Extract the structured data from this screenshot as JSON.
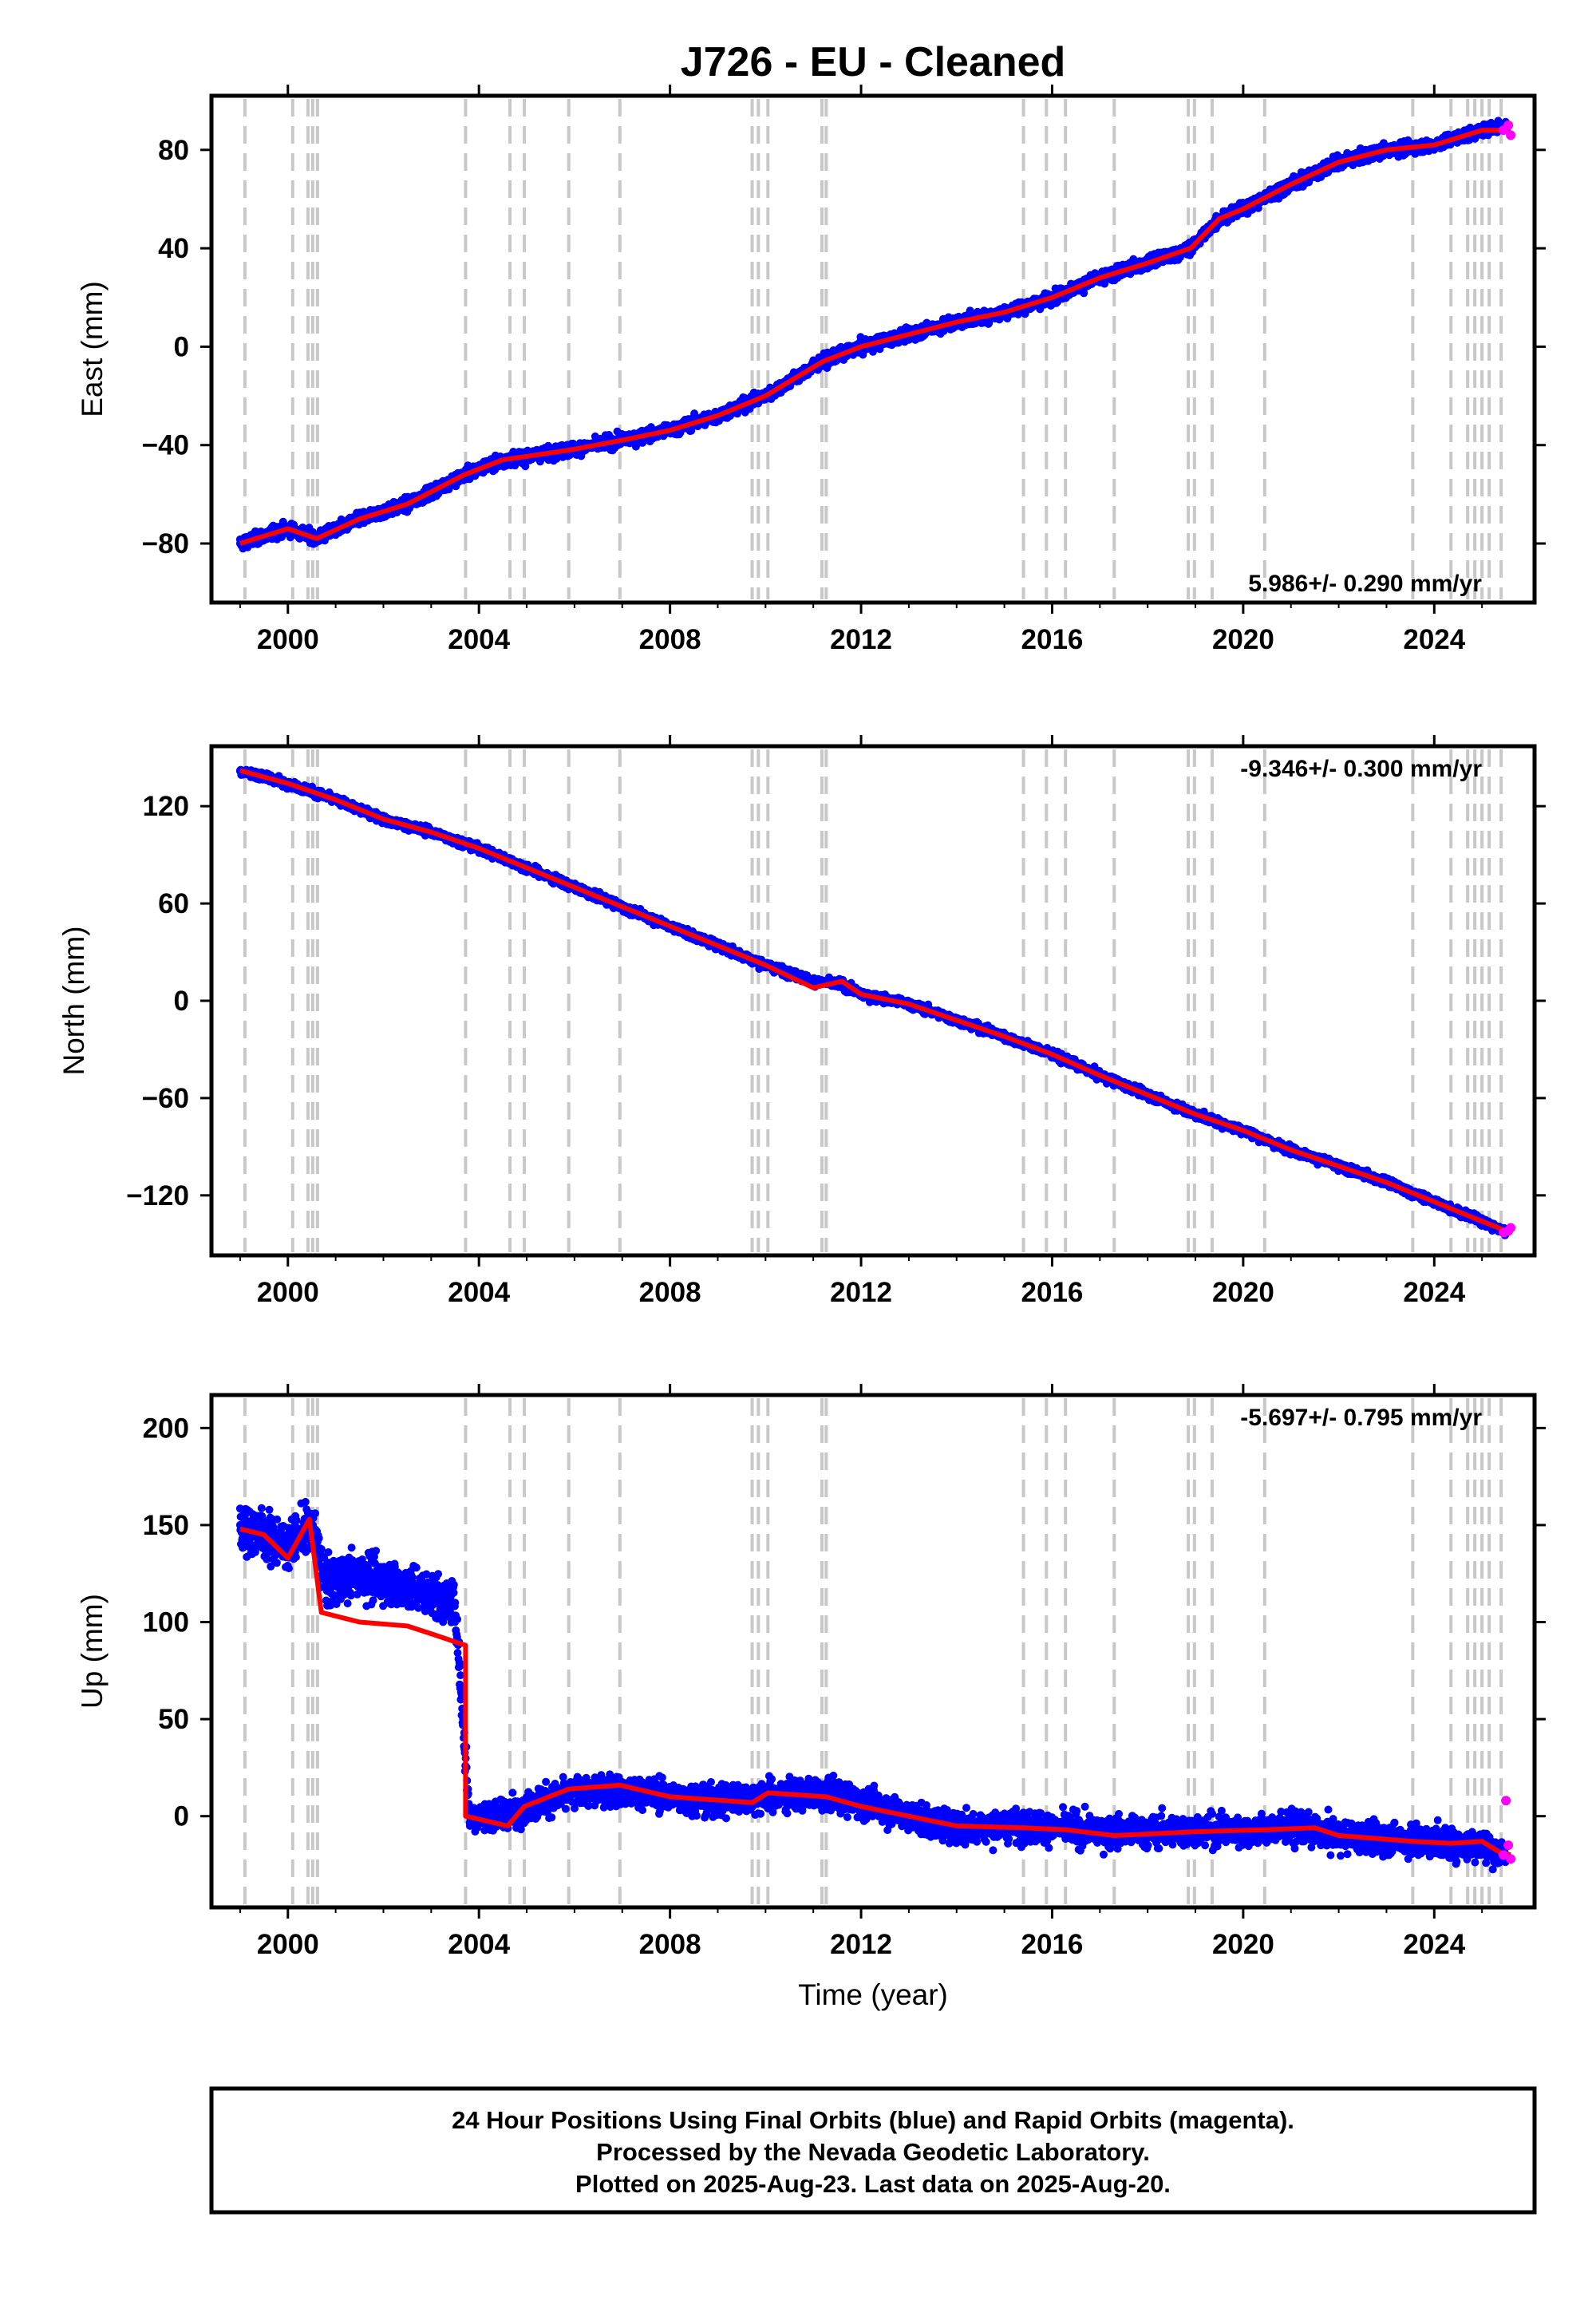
{
  "figure_title": "J726  - EU - Cleaned",
  "footer": {
    "line1": "24 Hour Positions Using Final Orbits (blue) and Rapid Orbits (magenta).",
    "line2": "Processed by the Nevada Geodetic Laboratory.",
    "line3": "Plotted on 2025-Aug-23. Last data on 2025-Aug-20."
  },
  "colors": {
    "final_orbits": "#0000ff",
    "rapid_orbits": "#ff00ff",
    "model_fit": "#ff0000",
    "event_lines": "#c8c8c8"
  },
  "event_lines_years": [
    1999.1,
    2000.1,
    2000.42,
    2000.52,
    2000.62,
    2003.72,
    2004.65,
    2004.95,
    2005.88,
    2006.95,
    2009.72,
    2009.85,
    2010.05,
    2011.18,
    2011.27,
    2015.4,
    2015.88,
    2016.28,
    2017.3,
    2018.85,
    2018.98,
    2019.35,
    2020.45,
    2023.55,
    2024.35,
    2024.7,
    2024.85,
    2025.0,
    2025.15,
    2025.4
  ],
  "chart_data": [
    {
      "type": "scatter",
      "name": "east",
      "ylabel": "East (mm)",
      "xlabel": "",
      "xlim": [
        1998.4,
        2026.1
      ],
      "ylim": [
        -104,
        102
      ],
      "x_ticks": [
        "2000",
        "2004",
        "2008",
        "2012",
        "2016",
        "2020",
        "2024"
      ],
      "y_ticks": [
        "80",
        "40",
        "0",
        "−40",
        "−80"
      ],
      "y_tick_values": [
        80,
        40,
        0,
        -40,
        -80
      ],
      "rate_label": "5.986+/- 0.290 mm/yr",
      "rate_position": "bottom-right",
      "series": [
        {
          "name": "Final Orbits",
          "x": [
            1999.0,
            2000.0,
            2000.6,
            2001.5,
            2002.5,
            2003.7,
            2004.5,
            2005.9,
            2007.0,
            2008.0,
            2009.0,
            2010.0,
            2011.2,
            2012.0,
            2013.0,
            2014.0,
            2015.0,
            2016.0,
            2017.0,
            2018.0,
            2018.9,
            2019.5,
            2020.0,
            2021.0,
            2022.0,
            2023.0,
            2024.0,
            2025.0,
            2025.5
          ],
          "y": [
            -80,
            -74,
            -78,
            -70,
            -64,
            -52,
            -46,
            -42,
            -38,
            -34,
            -28,
            -20,
            -6,
            0,
            5,
            10,
            14,
            20,
            28,
            34,
            40,
            52,
            56,
            66,
            75,
            80,
            82,
            88,
            90
          ]
        },
        {
          "name": "Rapid Orbits",
          "x": [
            2025.45,
            2025.55,
            2025.6
          ],
          "y": [
            88,
            90,
            86
          ]
        }
      ],
      "model": {
        "x": [
          1999.0,
          2000.0,
          2000.6,
          2001.5,
          2002.5,
          2003.7,
          2004.5,
          2005.9,
          2007.0,
          2008.0,
          2009.0,
          2010.0,
          2011.2,
          2012.0,
          2013.0,
          2014.0,
          2015.0,
          2016.0,
          2017.0,
          2018.0,
          2018.9,
          2019.5,
          2020.0,
          2021.0,
          2022.0,
          2023.0,
          2024.0,
          2025.0,
          2025.6
        ],
        "y": [
          -80,
          -74,
          -78,
          -70,
          -64,
          -52,
          -46,
          -42,
          -38,
          -34,
          -28,
          -20,
          -6,
          0,
          5,
          10,
          14,
          20,
          28,
          34,
          40,
          52,
          56,
          66,
          75,
          80,
          82,
          88,
          88
        ]
      }
    },
    {
      "type": "scatter",
      "name": "north",
      "ylabel": "North (mm)",
      "xlabel": "",
      "xlim": [
        1998.4,
        2026.1
      ],
      "ylim": [
        -157,
        157
      ],
      "x_ticks": [
        "2000",
        "2004",
        "2008",
        "2012",
        "2016",
        "2020",
        "2024"
      ],
      "y_ticks": [
        "120",
        "60",
        "0",
        "−60",
        "−120"
      ],
      "y_tick_values": [
        120,
        60,
        0,
        -60,
        -120
      ],
      "rate_label": "-9.346+/- 0.300 mm/yr",
      "rate_position": "top-right",
      "series": [
        {
          "name": "Final Orbits",
          "x": [
            1999.0,
            2000.0,
            2001.0,
            2002.0,
            2003.0,
            2004.0,
            2005.0,
            2006.0,
            2007.0,
            2008.0,
            2009.0,
            2010.0,
            2011.0,
            2011.6,
            2012.0,
            2013.0,
            2014.0,
            2015.0,
            2016.0,
            2017.0,
            2018.0,
            2019.0,
            2020.0,
            2021.0,
            2022.0,
            2023.0,
            2024.0,
            2025.0,
            2025.5
          ],
          "y": [
            142,
            134,
            124,
            112,
            104,
            94,
            82,
            70,
            58,
            46,
            34,
            22,
            12,
            10,
            4,
            -2,
            -12,
            -22,
            -33,
            -46,
            -58,
            -70,
            -80,
            -92,
            -102,
            -112,
            -124,
            -136,
            -143
          ]
        },
        {
          "name": "Rapid Orbits",
          "x": [
            2025.45,
            2025.55,
            2025.6
          ],
          "y": [
            -143,
            -142,
            -140
          ]
        }
      ],
      "model": {
        "x": [
          1999.0,
          2000.0,
          2001.0,
          2002.0,
          2003.0,
          2004.0,
          2005.0,
          2006.0,
          2007.0,
          2008.0,
          2009.0,
          2010.0,
          2011.0,
          2011.6,
          2012.0,
          2013.0,
          2014.0,
          2015.0,
          2016.0,
          2017.0,
          2018.0,
          2019.0,
          2020.0,
          2021.0,
          2022.0,
          2023.0,
          2024.0,
          2025.0,
          2025.6
        ],
        "y": [
          142,
          134,
          124,
          112,
          104,
          94,
          82,
          70,
          58,
          46,
          34,
          22,
          8,
          12,
          4,
          -2,
          -12,
          -22,
          -33,
          -46,
          -58,
          -70,
          -80,
          -92,
          -102,
          -112,
          -124,
          -136,
          -143
        ]
      }
    },
    {
      "type": "scatter",
      "name": "up",
      "ylabel": "Up (mm)",
      "xlabel": "Time (year)",
      "xlim": [
        1998.4,
        2026.1
      ],
      "ylim": [
        -47,
        217
      ],
      "x_ticks": [
        "2000",
        "2004",
        "2008",
        "2012",
        "2016",
        "2020",
        "2024"
      ],
      "y_ticks": [
        "200",
        "150",
        "100",
        "50",
        "0"
      ],
      "y_tick_values": [
        200,
        150,
        100,
        50,
        0
      ],
      "rate_label": "-5.697+/- 0.795 mm/yr",
      "rate_position": "top-right",
      "series": [
        {
          "name": "Final Orbits",
          "x": [
            1999.0,
            1999.5,
            2000.0,
            2000.5,
            2000.8,
            2001.5,
            2002.5,
            2003.5,
            2003.8,
            2004.5,
            2005.0,
            2006.0,
            2007.0,
            2008.0,
            2009.0,
            2010.0,
            2011.0,
            2012.0,
            2013.0,
            2014.0,
            2015.0,
            2016.0,
            2017.0,
            2018.0,
            2019.0,
            2020.0,
            2021.0,
            2022.0,
            2023.0,
            2024.0,
            2025.0,
            2025.5
          ],
          "y": [
            150,
            145,
            140,
            150,
            120,
            125,
            118,
            110,
            0,
            0,
            5,
            12,
            14,
            10,
            8,
            10,
            12,
            8,
            0,
            -6,
            -5,
            -6,
            -8,
            -8,
            -7,
            -8,
            -6,
            -10,
            -12,
            -13,
            -15,
            -20
          ]
        },
        {
          "name": "Rapid Orbits",
          "x": [
            2025.45,
            2025.5,
            2025.55,
            2025.6
          ],
          "y": [
            -20,
            8,
            -15,
            -22
          ]
        }
      ],
      "model": {
        "x": [
          1999.0,
          1999.5,
          2000.0,
          2000.45,
          2000.7,
          2001.5,
          2002.5,
          2003.0,
          2003.72,
          2003.72,
          2004.6,
          2004.95,
          2005.88,
          2006.95,
          2008.0,
          2009.72,
          2010.05,
          2011.27,
          2012.0,
          2013.0,
          2014.0,
          2015.4,
          2016.28,
          2017.3,
          2018.98,
          2020.45,
          2021.5,
          2022.0,
          2023.55,
          2024.35,
          2025.0,
          2025.4,
          2025.6
        ],
        "y": [
          148,
          145,
          133,
          153,
          105,
          100,
          98,
          94,
          88,
          0,
          -5,
          5,
          14,
          16,
          10,
          7,
          12,
          10,
          5,
          0,
          -5,
          -6,
          -7,
          -10,
          -8,
          -7,
          -6,
          -10,
          -13,
          -14,
          -13,
          -19,
          -20
        ]
      }
    }
  ]
}
